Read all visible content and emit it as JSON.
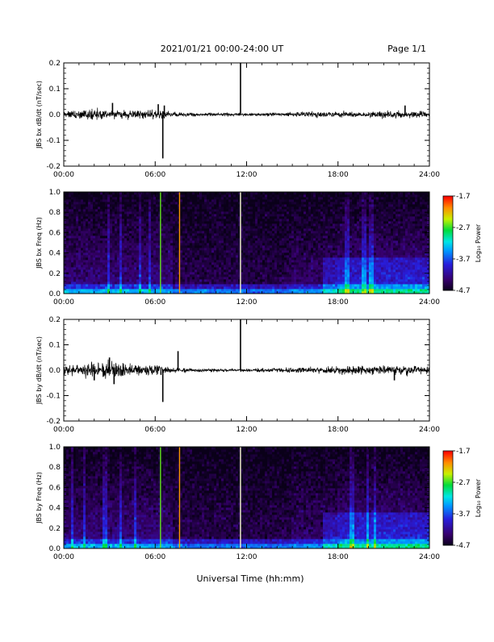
{
  "header": {
    "title": "2021/01/21  00:00-24:00 UT",
    "page": "Page 1/1"
  },
  "xaxis": {
    "label": "Universal Time (hh:mm)",
    "ticks": [
      "00:00",
      "06:00",
      "12:00",
      "18:00",
      "24:00"
    ],
    "range_hours": [
      0,
      24
    ]
  },
  "colorbar": {
    "label": "Log₁₀ Power",
    "ticks": [
      -1.7,
      -2.7,
      -3.7,
      -4.7
    ],
    "tick_labels": [
      "-1.7",
      "-2.7",
      "-3.7",
      "-4.7"
    ],
    "range": [
      -4.7,
      -1.7
    ]
  },
  "chart_data": [
    {
      "type": "line",
      "ylabel": "JBS bx dB/dt (nT/sec)",
      "ylim": [
        -0.2,
        0.2
      ],
      "yticks": [
        -0.2,
        -0.1,
        0.0,
        0.1,
        0.2
      ],
      "ytick_labels": [
        "-0.2",
        "-0.1",
        "0.0",
        "0.1",
        "0.2"
      ],
      "noise_envelope": [
        [
          0,
          0.015
        ],
        [
          1,
          0.018
        ],
        [
          2.5,
          0.02
        ],
        [
          3.5,
          0.015
        ],
        [
          5,
          0.02
        ],
        [
          6.5,
          0.02
        ],
        [
          7,
          0.008
        ],
        [
          11,
          0.006
        ],
        [
          13,
          0.006
        ],
        [
          16,
          0.01
        ],
        [
          20,
          0.012
        ],
        [
          22,
          0.015
        ],
        [
          24,
          0.012
        ]
      ],
      "spikes": [
        {
          "t": 3.2,
          "v": 0.045
        },
        {
          "t": 6.2,
          "v": 0.04
        },
        {
          "t": 6.5,
          "v": -0.17
        },
        {
          "t": 6.6,
          "v": 0.035
        },
        {
          "t": 11.6,
          "v": 0.2
        },
        {
          "t": 22.4,
          "v": 0.035
        }
      ]
    },
    {
      "type": "heatmap",
      "ylabel": "JBS bx Freq (Hz)",
      "ylim": [
        0,
        1.0
      ],
      "yticks": [
        0.0,
        0.2,
        0.4,
        0.6,
        0.8,
        1.0
      ],
      "ytick_labels": [
        "0.0",
        "0.2",
        "0.4",
        "0.6",
        "0.8",
        "1.0"
      ],
      "z_range": [
        -4.7,
        -1.7
      ],
      "bright_lines": [
        {
          "t": 6.35,
          "z": -2.6
        },
        {
          "t": 7.6,
          "z": -2.1
        },
        {
          "t": 11.6,
          "z": -2.3
        }
      ],
      "active_bands": [
        [
          1.2,
          1.35
        ],
        [
          2.8,
          3.0
        ],
        [
          3.6,
          3.8
        ],
        [
          4.9,
          5.1
        ],
        [
          5.6,
          5.8
        ],
        [
          18.5,
          18.7
        ],
        [
          19.6,
          19.8
        ],
        [
          20.1,
          20.3
        ]
      ]
    },
    {
      "type": "line",
      "ylabel": "JBS by dB/dt (nT/sec)",
      "ylim": [
        -0.2,
        0.2
      ],
      "yticks": [
        -0.2,
        -0.1,
        0.0,
        0.1,
        0.2
      ],
      "ytick_labels": [
        "-0.2",
        "-0.1",
        "0.0",
        "0.1",
        "0.2"
      ],
      "noise_envelope": [
        [
          0,
          0.02
        ],
        [
          1,
          0.025
        ],
        [
          2.5,
          0.03
        ],
        [
          3.5,
          0.03
        ],
        [
          5,
          0.02
        ],
        [
          6.5,
          0.02
        ],
        [
          7,
          0.01
        ],
        [
          11,
          0.006
        ],
        [
          13,
          0.008
        ],
        [
          16,
          0.014
        ],
        [
          20,
          0.018
        ],
        [
          22,
          0.02
        ],
        [
          24,
          0.015
        ]
      ],
      "spikes": [
        {
          "t": 2.0,
          "v": -0.04
        },
        {
          "t": 3.0,
          "v": 0.05
        },
        {
          "t": 3.3,
          "v": -0.055
        },
        {
          "t": 6.5,
          "v": -0.125
        },
        {
          "t": 7.5,
          "v": 0.075
        },
        {
          "t": 11.6,
          "v": 0.2
        },
        {
          "t": 21.7,
          "v": -0.04
        }
      ]
    },
    {
      "type": "heatmap",
      "ylabel": "JBS by Freq (Hz)",
      "ylim": [
        0,
        1.0
      ],
      "yticks": [
        0.0,
        0.2,
        0.4,
        0.6,
        0.8,
        1.0
      ],
      "ytick_labels": [
        "0.0",
        "0.2",
        "0.4",
        "0.6",
        "0.8",
        "1.0"
      ],
      "z_range": [
        -4.7,
        -1.7
      ],
      "bright_lines": [
        {
          "t": 6.35,
          "z": -2.6
        },
        {
          "t": 7.6,
          "z": -2.1
        },
        {
          "t": 11.6,
          "z": -2.3
        }
      ],
      "active_bands": [
        [
          0.4,
          0.6
        ],
        [
          1.2,
          1.4
        ],
        [
          2.5,
          2.8
        ],
        [
          3.6,
          3.8
        ],
        [
          4.6,
          4.8
        ],
        [
          18.8,
          19.0
        ],
        [
          19.8,
          20.0
        ],
        [
          20.3,
          20.5
        ]
      ]
    }
  ]
}
